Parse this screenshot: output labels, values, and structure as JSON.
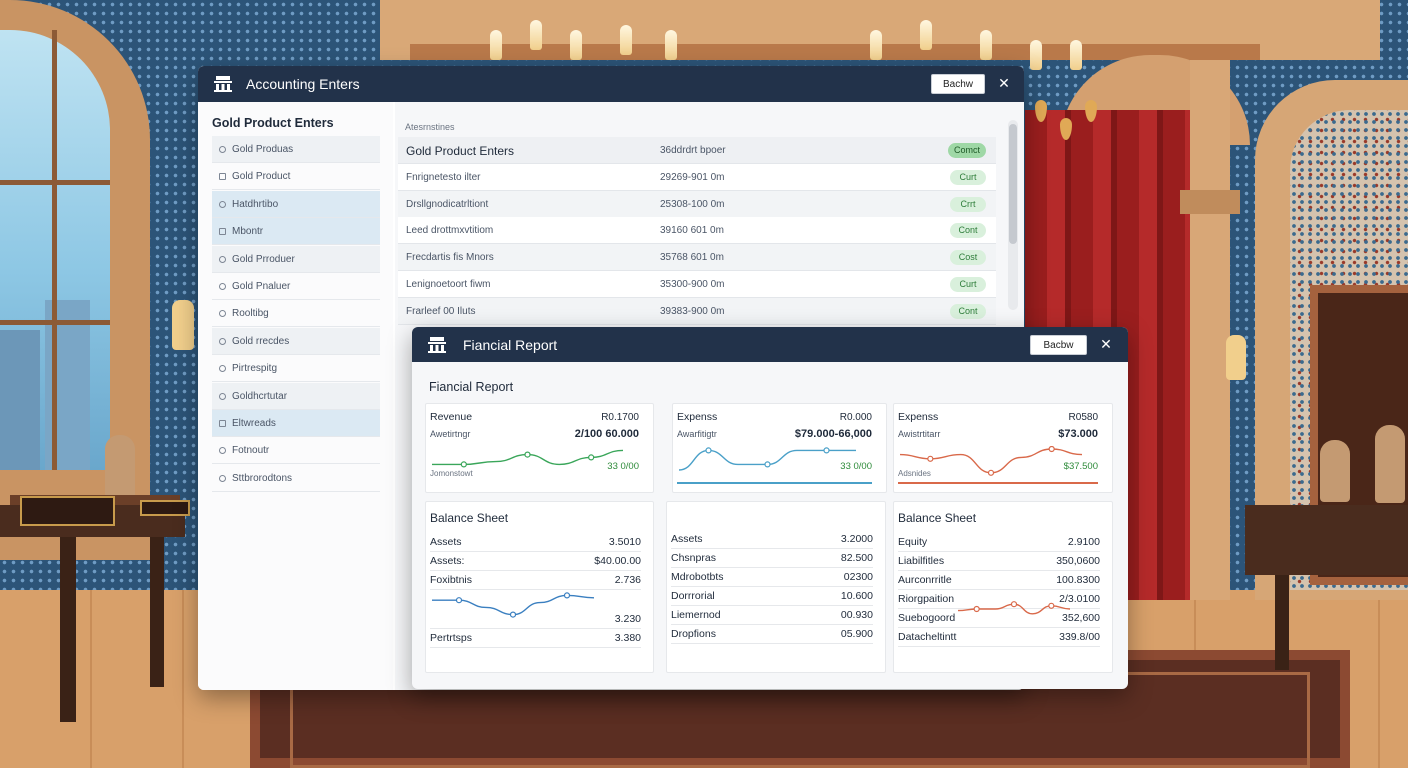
{
  "window_main": {
    "title": "Accounting Enters",
    "button_label": "Bachw",
    "sidebar": {
      "title": "Gold Product Enters",
      "items": [
        {
          "label": "Gold Produas"
        },
        {
          "label": "Gold Product"
        },
        {
          "label": "Hatdhrtibo"
        },
        {
          "label": "Mbontr"
        },
        {
          "label": "Gold Prroduer"
        },
        {
          "label": "Gold Pnaluer"
        },
        {
          "label": "Rooltibg"
        },
        {
          "label": "Gold rrecdes"
        },
        {
          "label": "Pirtrespitg"
        },
        {
          "label": "Goldhcrtutar"
        },
        {
          "label": "Eltwreads"
        },
        {
          "label": "Fotnoutr"
        },
        {
          "label": "Sttbrorodtons"
        }
      ]
    },
    "table": {
      "caption": "Atesrnstines",
      "header": {
        "name": "Gold Product Enters",
        "amount": "36ddrdrt bpoer",
        "status": "Comct"
      },
      "rows": [
        {
          "name": "Fnrignetesto ilter",
          "amount": "29269-901 0m",
          "status": "Curt"
        },
        {
          "name": "Drsllgnodicatrltiont",
          "amount": "25308-100 0m",
          "status": "Crrt"
        },
        {
          "name": "Leed drottmxvtitiom",
          "amount": "39160 601 0m",
          "status": "Cont"
        },
        {
          "name": "Frecdartis fis Mnors",
          "amount": "35768 601 0m",
          "status": "Cost"
        },
        {
          "name": "Lenignoetoort fiwm",
          "amount": "35300-900 0m",
          "status": "Curt"
        },
        {
          "name": "Frarleef 00 Iluts",
          "amount": "39383-900 0m",
          "status": "Cont"
        }
      ]
    }
  },
  "window_report": {
    "title": "Fiancial Report",
    "button_label": "Bacbw",
    "section_title": "Fiancial Report",
    "top_cards": [
      {
        "label": "Revenue",
        "value": "R0.1700",
        "sub_label": "Awetirtngr",
        "sub_value": "2/100 60.000",
        "note": "Jomonstowt",
        "green_value": "33 0/00",
        "trend": [
          {
            "x": 0,
            "y": 0.55
          },
          {
            "x": 1,
            "y": 0.55
          },
          {
            "x": 2,
            "y": 0.45
          },
          {
            "x": 3,
            "y": 0.2
          },
          {
            "x": 4,
            "y": 0.55
          },
          {
            "x": 5,
            "y": 0.3
          },
          {
            "x": 6,
            "y": 0.05
          }
        ],
        "trend_color": "#3aa65a"
      },
      {
        "label": "Expenss",
        "value": "R0.000",
        "sub_label": "Awarfitigtr",
        "sub_value": "$79.000-66,000",
        "note": "",
        "green_value": "33 0/00",
        "trend": [
          {
            "x": 0,
            "y": 0.75
          },
          {
            "x": 1,
            "y": 0.05
          },
          {
            "x": 2,
            "y": 0.55
          },
          {
            "x": 3,
            "y": 0.55
          },
          {
            "x": 4,
            "y": 0.05
          },
          {
            "x": 5,
            "y": 0.05
          },
          {
            "x": 6,
            "y": 0.05
          }
        ],
        "trend_color": "#4aa0c8"
      },
      {
        "label": "Expenss",
        "value": "R0580",
        "sub_label": "Awistrtitarr",
        "sub_value": "$73.000",
        "note": "Adsnides",
        "green_value": "$37.500",
        "trend": [
          {
            "x": 0,
            "y": 0.2
          },
          {
            "x": 1,
            "y": 0.35
          },
          {
            "x": 2,
            "y": 0.2
          },
          {
            "x": 3,
            "y": 0.85
          },
          {
            "x": 4,
            "y": 0.3
          },
          {
            "x": 5,
            "y": 0.0
          },
          {
            "x": 6,
            "y": 0.2
          }
        ],
        "trend_color": "#d9694a"
      }
    ],
    "balance_sheets": [
      {
        "title": "Balance Sheet",
        "rows": [
          {
            "k": "Assets",
            "v": "3.5010"
          },
          {
            "k": "Assets:",
            "v": "$40.00.00"
          },
          {
            "k": "Foxibtnis",
            "v": "2.736"
          },
          {
            "k": "",
            "v": "3.230"
          },
          {
            "k": "Pertrtsps",
            "v": "3.380"
          }
        ],
        "trend": [
          {
            "x": 0,
            "y": 0.3
          },
          {
            "x": 1,
            "y": 0.3
          },
          {
            "x": 2,
            "y": 0.6
          },
          {
            "x": 3,
            "y": 0.9
          },
          {
            "x": 4,
            "y": 0.4
          },
          {
            "x": 5,
            "y": 0.1
          },
          {
            "x": 6,
            "y": 0.2
          }
        ],
        "trend_color": "#3a7fc0"
      },
      {
        "title": "",
        "rows": [
          {
            "k": "Assets",
            "v": "3.2000"
          },
          {
            "k": "Chsnpras",
            "v": "82.500"
          },
          {
            "k": "Mdrobotbts",
            "v": "02300"
          },
          {
            "k": "Dorrrorial",
            "v": "10.600"
          },
          {
            "k": "Liemernod",
            "v": "00.930"
          },
          {
            "k": "Dropfions",
            "v": "05.900"
          }
        ]
      },
      {
        "title": "Balance Sheet",
        "rows": [
          {
            "k": "Equity",
            "v": "2.9100"
          },
          {
            "k": "Liabilfitles",
            "v": "350,0600"
          },
          {
            "k": "Aurconrritle",
            "v": "100.8300"
          },
          {
            "k": "Riorgpaition",
            "v": "2/3.0100"
          },
          {
            "k": "Suebogoord",
            "v": "352,600"
          },
          {
            "k": "Datacheltintt",
            "v": "339.8/00"
          }
        ],
        "trend": [
          {
            "x": 0,
            "y": 0.6
          },
          {
            "x": 1,
            "y": 0.5
          },
          {
            "x": 2,
            "y": 0.5
          },
          {
            "x": 3,
            "y": 0.2
          },
          {
            "x": 4,
            "y": 0.8
          },
          {
            "x": 5,
            "y": 0.3
          },
          {
            "x": 6,
            "y": 0.5
          }
        ],
        "trend_color": "#d9694a"
      }
    ]
  }
}
